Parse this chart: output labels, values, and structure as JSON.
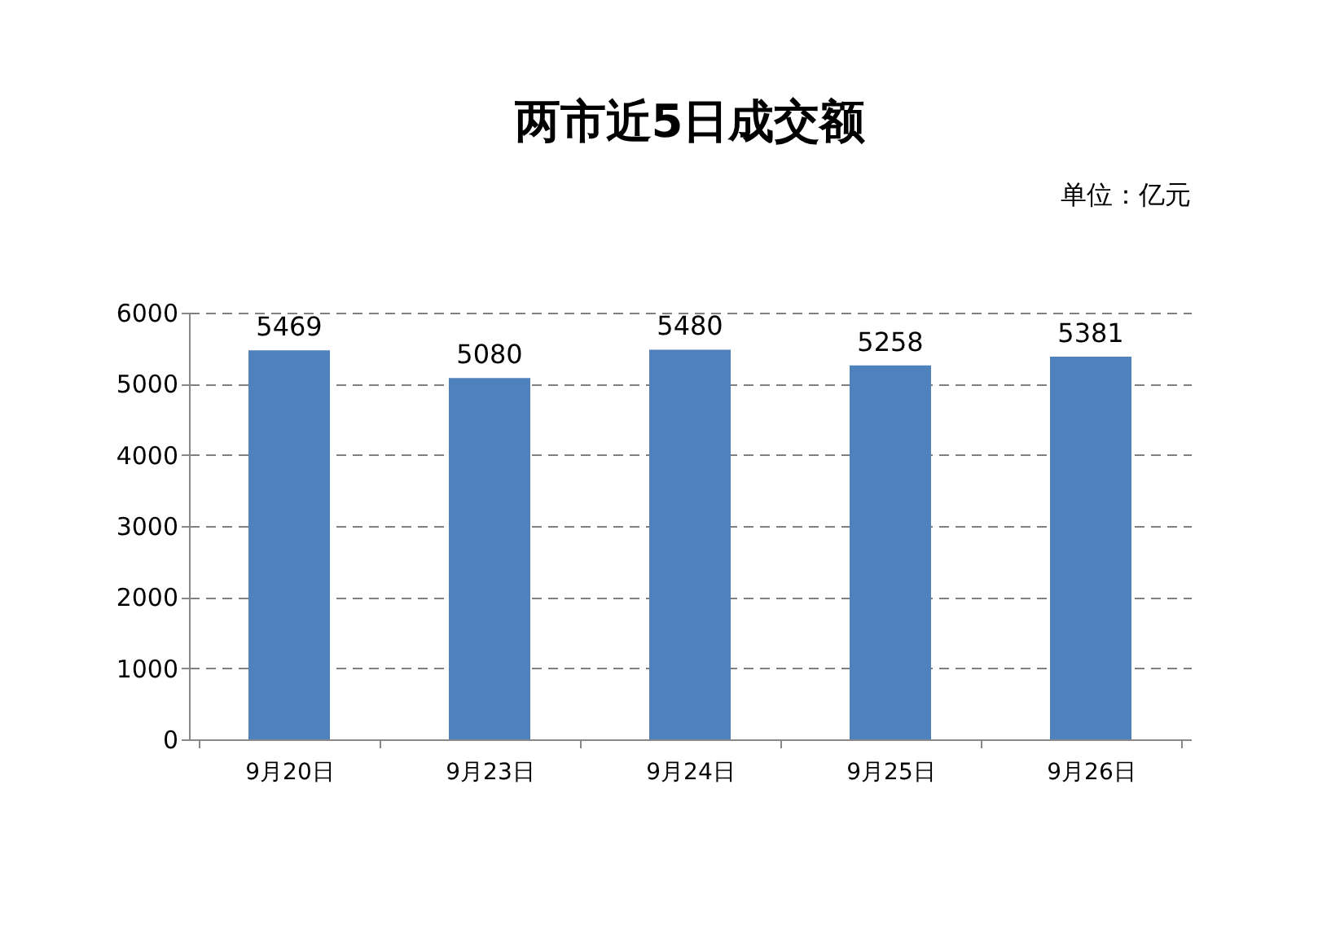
{
  "chart_data": {
    "type": "bar",
    "title": "两市近5日成交额",
    "annotations": [
      "单位：亿元"
    ],
    "categories": [
      "9月20日",
      "9月23日",
      "9月24日",
      "9月25日",
      "9月26日"
    ],
    "values": [
      5469,
      5080,
      5480,
      5258,
      5381
    ],
    "color": "#4f81bd",
    "ylim": [
      0,
      6000
    ],
    "yticks": [
      0,
      1000,
      2000,
      3000,
      4000,
      5000,
      6000
    ],
    "grid": "y",
    "data_labels": true
  }
}
